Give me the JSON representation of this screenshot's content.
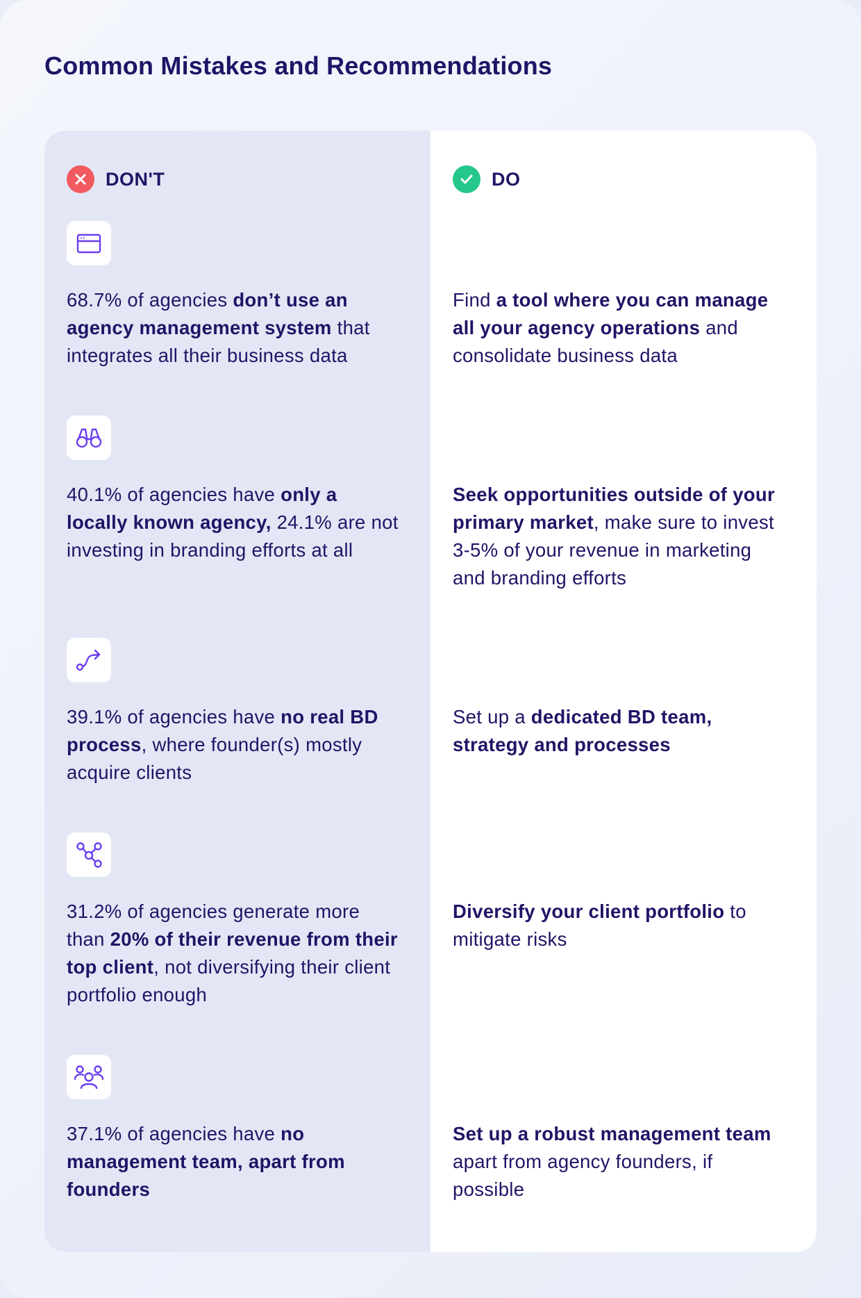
{
  "title": "Common Mistakes and Recommendations",
  "columns": {
    "dont": {
      "label": "DON'T",
      "color": "#f15b5f"
    },
    "do": {
      "label": "DO",
      "color": "#25c88a"
    }
  },
  "accent_color": "#1f1566",
  "icon_color": "#6a3ef0",
  "rows": [
    {
      "icon": "browser-window-icon",
      "dont": [
        {
          "t": "68.7% of agencies ",
          "b": false
        },
        {
          "t": "don’t use an agency management system",
          "b": true
        },
        {
          "t": " that integrates all their business data",
          "b": false
        }
      ],
      "do": [
        {
          "t": "Find ",
          "b": false
        },
        {
          "t": "a tool where you can manage all your agency operations",
          "b": true
        },
        {
          "t": " and consolidate business data",
          "b": false
        }
      ]
    },
    {
      "icon": "binoculars-icon",
      "dont": [
        {
          "t": "40.1% of agencies have ",
          "b": false
        },
        {
          "t": "only a locally known agency,",
          "b": true
        },
        {
          "t": " 24.1% are not investing in branding efforts at all",
          "b": false
        }
      ],
      "do": [
        {
          "t": "Seek opportunities outside of your primary market",
          "b": true
        },
        {
          "t": ", make sure to invest 3-5% of your revenue in marketing and branding efforts",
          "b": false
        }
      ]
    },
    {
      "icon": "route-arrow-icon",
      "dont": [
        {
          "t": "39.1% of agencies have ",
          "b": false
        },
        {
          "t": "no real BD process",
          "b": true
        },
        {
          "t": ", where founder(s) mostly acquire clients",
          "b": false
        }
      ],
      "do": [
        {
          "t": "Set up a ",
          "b": false
        },
        {
          "t": "dedicated BD team, strategy and processes",
          "b": true
        }
      ]
    },
    {
      "icon": "network-nodes-icon",
      "dont": [
        {
          "t": "31.2% of agencies generate more than ",
          "b": false
        },
        {
          "t": "20% of their revenue from their top client",
          "b": true
        },
        {
          "t": ", not diversifying their client portfolio enough",
          "b": false
        }
      ],
      "do": [
        {
          "t": "Diversify your client portfolio",
          "b": true
        },
        {
          "t": " to mitigate risks",
          "b": false
        }
      ]
    },
    {
      "icon": "team-people-icon",
      "dont": [
        {
          "t": "37.1% of agencies have ",
          "b": false
        },
        {
          "t": "no management team, apart from founders",
          "b": true
        }
      ],
      "do": [
        {
          "t": "Set up a robust management team",
          "b": true
        },
        {
          "t": " apart from agency founders, if possible",
          "b": false
        }
      ]
    }
  ]
}
